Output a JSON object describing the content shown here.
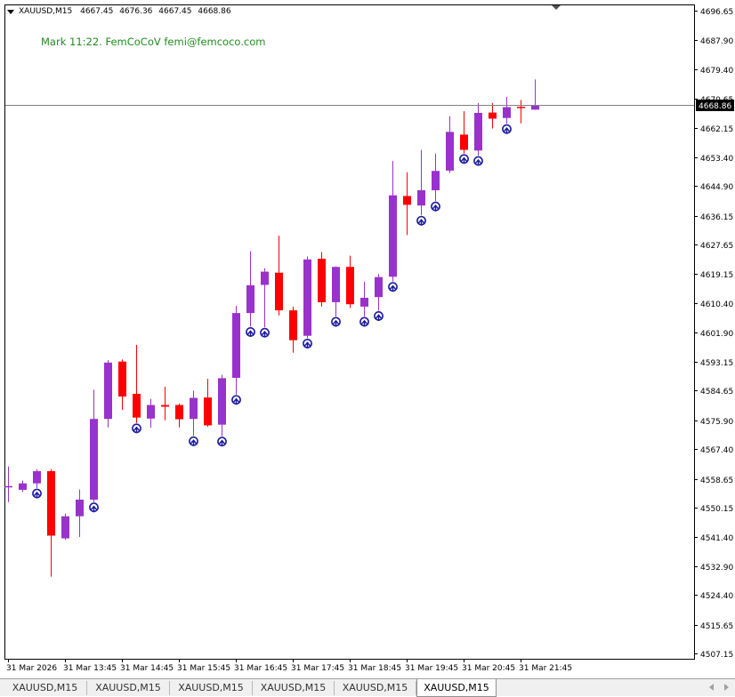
{
  "header": {
    "symbol": "XAUUSD,M15",
    "open": "4667.45",
    "high": "4676.36",
    "low": "4667.45",
    "close": "4668.86"
  },
  "note": "Mark 11:22. FemCoCoV femi@femcoco.com",
  "current_price_label": "4668.86",
  "tabs": [
    {
      "label": "XAUUSD,M15",
      "active": false
    },
    {
      "label": "XAUUSD,M15",
      "active": false
    },
    {
      "label": "XAUUSD,M15",
      "active": false
    },
    {
      "label": "XAUUSD,M15",
      "active": false
    },
    {
      "label": "XAUUSD,M15",
      "active": false
    },
    {
      "label": "XAUUSD,M15",
      "active": true
    }
  ],
  "colors": {
    "bull": "#9932cc",
    "bear": "#ff0000",
    "arrow": "#1c1ca0",
    "note": "#228b22",
    "price_line": "#808080"
  },
  "chart_data": {
    "type": "candlestick",
    "y_ticks": [
      "4696.65",
      "4687.90",
      "4679.40",
      "4670.65",
      "4662.15",
      "4653.40",
      "4644.90",
      "4636.15",
      "4627.65",
      "4619.15",
      "4610.40",
      "4601.90",
      "4593.15",
      "4584.65",
      "4575.90",
      "4567.40",
      "4558.65",
      "4550.15",
      "4541.40",
      "4532.90",
      "4524.40",
      "4515.65",
      "4507.15"
    ],
    "ylim": [
      4505.6,
      4698.2
    ],
    "x_labels": [
      {
        "index": 0,
        "label": "31 Mar 2026"
      },
      {
        "index": 4,
        "label": "31 Mar 13:45"
      },
      {
        "index": 8,
        "label": "31 Mar 14:45"
      },
      {
        "index": 12,
        "label": "31 Mar 15:45"
      },
      {
        "index": 16,
        "label": "31 Mar 16:45"
      },
      {
        "index": 20,
        "label": "31 Mar 17:45"
      },
      {
        "index": 24,
        "label": "31 Mar 18:45"
      },
      {
        "index": 28,
        "label": "31 Mar 19:45"
      },
      {
        "index": 32,
        "label": "31 Mar 20:45"
      },
      {
        "index": 36,
        "label": "31 Mar 21:45"
      }
    ],
    "candles": [
      {
        "o": 4556.5,
        "h": 4562.3,
        "l": 4551.8,
        "c": 4556.5
      },
      {
        "o": 4555.4,
        "h": 4558.1,
        "l": 4554.8,
        "c": 4557.3
      },
      {
        "o": 4557.3,
        "h": 4561.5,
        "l": 4555.9,
        "c": 4560.9
      },
      {
        "o": 4560.9,
        "h": 4561.5,
        "l": 4529.8,
        "c": 4541.9
      },
      {
        "o": 4541.1,
        "h": 4548.4,
        "l": 4540.6,
        "c": 4547.6
      },
      {
        "o": 4547.6,
        "h": 4555.5,
        "l": 4541.5,
        "c": 4552.5
      },
      {
        "o": 4552.5,
        "h": 4584.9,
        "l": 4551.8,
        "c": 4576.3
      },
      {
        "o": 4576.3,
        "h": 4593.6,
        "l": 4573.8,
        "c": 4592.9
      },
      {
        "o": 4593.2,
        "h": 4593.8,
        "l": 4579.0,
        "c": 4582.9
      },
      {
        "o": 4583.7,
        "h": 4598.1,
        "l": 4575.1,
        "c": 4576.7
      },
      {
        "o": 4576.4,
        "h": 4582.2,
        "l": 4573.7,
        "c": 4580.4
      },
      {
        "o": 4580.4,
        "h": 4585.8,
        "l": 4575.9,
        "c": 4579.9
      },
      {
        "o": 4580.4,
        "h": 4580.8,
        "l": 4573.8,
        "c": 4576.2
      },
      {
        "o": 4576.3,
        "h": 4584.6,
        "l": 4571.3,
        "c": 4582.5
      },
      {
        "o": 4582.6,
        "h": 4588.1,
        "l": 4574.0,
        "c": 4574.4
      },
      {
        "o": 4574.6,
        "h": 4589.3,
        "l": 4571.2,
        "c": 4588.3
      },
      {
        "o": 4588.4,
        "h": 4609.6,
        "l": 4583.5,
        "c": 4607.5
      },
      {
        "o": 4607.5,
        "h": 4625.7,
        "l": 4603.5,
        "c": 4615.7
      },
      {
        "o": 4615.8,
        "h": 4620.7,
        "l": 4603.3,
        "c": 4619.7
      },
      {
        "o": 4619.4,
        "h": 4630.3,
        "l": 4606.8,
        "c": 4608.3
      },
      {
        "o": 4608.3,
        "h": 4609.4,
        "l": 4595.8,
        "c": 4599.5
      },
      {
        "o": 4600.8,
        "h": 4624.2,
        "l": 4600.1,
        "c": 4623.3
      },
      {
        "o": 4623.5,
        "h": 4625.5,
        "l": 4609.4,
        "c": 4610.7
      },
      {
        "o": 4610.7,
        "h": 4621.3,
        "l": 4606.5,
        "c": 4621.1
      },
      {
        "o": 4621.1,
        "h": 4624.4,
        "l": 4609.0,
        "c": 4610.1
      },
      {
        "o": 4609.4,
        "h": 4616.7,
        "l": 4606.5,
        "c": 4612.0
      },
      {
        "o": 4612.2,
        "h": 4619.0,
        "l": 4608.2,
        "c": 4618.1
      },
      {
        "o": 4618.2,
        "h": 4652.3,
        "l": 4616.8,
        "c": 4642.2
      },
      {
        "o": 4642.0,
        "h": 4649.0,
        "l": 4630.5,
        "c": 4639.4
      },
      {
        "o": 4639.2,
        "h": 4655.6,
        "l": 4636.3,
        "c": 4643.7
      },
      {
        "o": 4643.7,
        "h": 4654.5,
        "l": 4640.5,
        "c": 4649.4
      },
      {
        "o": 4649.5,
        "h": 4665.5,
        "l": 4648.8,
        "c": 4660.9
      },
      {
        "o": 4660.1,
        "h": 4667.0,
        "l": 4654.5,
        "c": 4655.6
      },
      {
        "o": 4655.4,
        "h": 4669.4,
        "l": 4653.9,
        "c": 4666.5
      },
      {
        "o": 4666.6,
        "h": 4669.4,
        "l": 4661.9,
        "c": 4664.8
      },
      {
        "o": 4665.0,
        "h": 4671.2,
        "l": 4663.3,
        "c": 4668.2
      },
      {
        "o": 4668.3,
        "h": 4670.3,
        "l": 4663.4,
        "c": 4668.0
      },
      {
        "o": 4667.45,
        "h": 4676.36,
        "l": 4667.45,
        "c": 4668.86
      }
    ],
    "arrows_below": [
      2,
      6,
      9,
      13,
      15,
      16,
      17,
      18,
      21,
      23,
      25,
      26,
      27,
      29,
      30,
      32,
      33,
      35
    ],
    "current_price": 4668.86
  }
}
